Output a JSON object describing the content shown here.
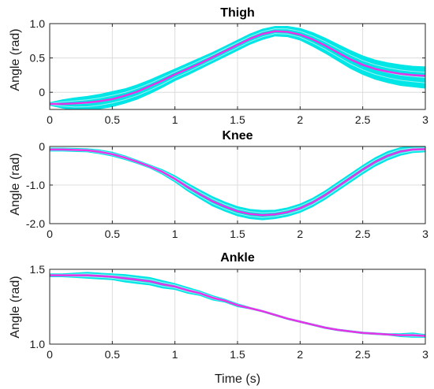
{
  "chart_data": [
    {
      "type": "area",
      "title": "Thigh",
      "ylabel": "Angle (rad)",
      "xlabel": "",
      "xlim": [
        0,
        3
      ],
      "ylim": [
        -0.25,
        1.0
      ],
      "xticks": [
        0,
        0.5,
        1,
        1.5,
        2,
        2.5,
        3
      ],
      "xtick_labels": [
        "0",
        "0.5",
        "1",
        "1.5",
        "2",
        "2.5",
        "3"
      ],
      "yticks": [
        0,
        0.5,
        1.0
      ],
      "ytick_labels": [
        "0",
        "0.5",
        "1.0"
      ],
      "grid": true,
      "x": [
        0,
        0.1,
        0.2,
        0.3,
        0.4,
        0.5,
        0.6,
        0.7,
        0.8,
        0.9,
        1.0,
        1.1,
        1.2,
        1.3,
        1.4,
        1.5,
        1.6,
        1.7,
        1.8,
        1.9,
        2.0,
        2.1,
        2.2,
        2.3,
        2.4,
        2.5,
        2.6,
        2.7,
        2.8,
        2.9,
        3.0
      ],
      "series": [
        {
          "role": "mean",
          "color": "#e633e6",
          "values": [
            -0.17,
            -0.17,
            -0.16,
            -0.15,
            -0.13,
            -0.1,
            -0.05,
            0.01,
            0.09,
            0.17,
            0.26,
            0.34,
            0.42,
            0.51,
            0.6,
            0.69,
            0.78,
            0.85,
            0.89,
            0.88,
            0.84,
            0.77,
            0.68,
            0.58,
            0.48,
            0.4,
            0.34,
            0.3,
            0.27,
            0.25,
            0.24
          ]
        },
        {
          "role": "band-upper",
          "color": "#00e5e5",
          "values": [
            -0.15,
            -0.11,
            -0.08,
            -0.06,
            -0.03,
            0.01,
            0.05,
            0.11,
            0.18,
            0.26,
            0.34,
            0.42,
            0.5,
            0.58,
            0.67,
            0.76,
            0.85,
            0.92,
            0.96,
            0.96,
            0.93,
            0.87,
            0.79,
            0.7,
            0.61,
            0.53,
            0.47,
            0.43,
            0.4,
            0.38,
            0.37
          ]
        },
        {
          "role": "band-lower",
          "color": "#00e5e5",
          "values": [
            -0.19,
            -0.23,
            -0.26,
            -0.26,
            -0.24,
            -0.21,
            -0.16,
            -0.1,
            -0.02,
            0.07,
            0.17,
            0.25,
            0.34,
            0.43,
            0.52,
            0.61,
            0.7,
            0.77,
            0.82,
            0.81,
            0.76,
            0.67,
            0.57,
            0.46,
            0.35,
            0.26,
            0.19,
            0.14,
            0.1,
            0.08,
            0.06
          ]
        }
      ]
    },
    {
      "type": "area",
      "title": "Knee",
      "ylabel": "Angle (rad)",
      "xlabel": "",
      "xlim": [
        0,
        3
      ],
      "ylim": [
        -2.0,
        0
      ],
      "xticks": [
        0,
        0.5,
        1,
        1.5,
        2,
        2.5,
        3
      ],
      "xtick_labels": [
        "0",
        "0.5",
        "1",
        "1.5",
        "2",
        "2.5",
        "3"
      ],
      "yticks": [
        -2.0,
        -1.0,
        0
      ],
      "ytick_labels": [
        "-2.0",
        "-1.0",
        "0"
      ],
      "grid": true,
      "x": [
        0,
        0.1,
        0.2,
        0.3,
        0.4,
        0.5,
        0.6,
        0.7,
        0.8,
        0.9,
        1.0,
        1.1,
        1.2,
        1.3,
        1.4,
        1.5,
        1.6,
        1.7,
        1.8,
        1.9,
        2.0,
        2.1,
        2.2,
        2.3,
        2.4,
        2.5,
        2.6,
        2.7,
        2.8,
        2.9,
        3.0
      ],
      "series": [
        {
          "role": "mean",
          "color": "#e633e6",
          "values": [
            -0.08,
            -0.08,
            -0.09,
            -0.1,
            -0.14,
            -0.2,
            -0.29,
            -0.4,
            -0.52,
            -0.66,
            -0.84,
            -1.05,
            -1.24,
            -1.42,
            -1.56,
            -1.68,
            -1.75,
            -1.78,
            -1.76,
            -1.7,
            -1.6,
            -1.45,
            -1.26,
            -1.04,
            -0.82,
            -0.6,
            -0.4,
            -0.24,
            -0.13,
            -0.08,
            -0.07
          ]
        },
        {
          "role": "band-upper",
          "color": "#00e5e5",
          "values": [
            -0.04,
            -0.04,
            -0.05,
            -0.06,
            -0.09,
            -0.15,
            -0.24,
            -0.36,
            -0.48,
            -0.6,
            -0.76,
            -0.95,
            -1.13,
            -1.3,
            -1.44,
            -1.56,
            -1.63,
            -1.66,
            -1.65,
            -1.59,
            -1.49,
            -1.34,
            -1.15,
            -0.93,
            -0.71,
            -0.49,
            -0.29,
            -0.13,
            -0.03,
            0.0,
            0.0
          ]
        },
        {
          "role": "band-lower",
          "color": "#00e5e5",
          "values": [
            -0.12,
            -0.12,
            -0.13,
            -0.14,
            -0.19,
            -0.25,
            -0.34,
            -0.44,
            -0.56,
            -0.72,
            -0.92,
            -1.15,
            -1.35,
            -1.54,
            -1.68,
            -1.8,
            -1.87,
            -1.9,
            -1.87,
            -1.81,
            -1.71,
            -1.56,
            -1.37,
            -1.15,
            -0.93,
            -0.71,
            -0.51,
            -0.35,
            -0.23,
            -0.16,
            -0.14
          ]
        }
      ]
    },
    {
      "type": "area",
      "title": "Ankle",
      "ylabel": "Angle (rad)",
      "xlabel": "Time (s)",
      "xlim": [
        0,
        3
      ],
      "ylim": [
        1.0,
        1.5
      ],
      "xticks": [
        0,
        0.5,
        1,
        1.5,
        2,
        2.5,
        3
      ],
      "xtick_labels": [
        "0",
        "0.5",
        "1",
        "1.5",
        "2",
        "2.5",
        "3"
      ],
      "yticks": [
        1.0,
        1.5
      ],
      "ytick_labels": [
        "1.0",
        "1.5"
      ],
      "grid": true,
      "x": [
        0,
        0.1,
        0.2,
        0.3,
        0.4,
        0.5,
        0.6,
        0.7,
        0.8,
        0.9,
        1.0,
        1.1,
        1.2,
        1.3,
        1.4,
        1.5,
        1.6,
        1.7,
        1.8,
        1.9,
        2.0,
        2.1,
        2.2,
        2.3,
        2.4,
        2.5,
        2.6,
        2.7,
        2.8,
        2.9,
        3.0
      ],
      "series": [
        {
          "role": "mean",
          "color": "#e633e6",
          "values": [
            1.46,
            1.46,
            1.46,
            1.46,
            1.455,
            1.45,
            1.44,
            1.43,
            1.42,
            1.4,
            1.385,
            1.36,
            1.34,
            1.31,
            1.29,
            1.26,
            1.24,
            1.22,
            1.195,
            1.17,
            1.15,
            1.13,
            1.11,
            1.095,
            1.085,
            1.075,
            1.07,
            1.065,
            1.06,
            1.06,
            1.055
          ]
        },
        {
          "role": "band-upper",
          "color": "#00e5e5",
          "values": [
            1.47,
            1.47,
            1.475,
            1.48,
            1.475,
            1.47,
            1.465,
            1.455,
            1.445,
            1.425,
            1.405,
            1.38,
            1.355,
            1.325,
            1.3,
            1.27,
            1.245,
            1.225,
            1.2,
            1.175,
            1.155,
            1.135,
            1.115,
            1.1,
            1.09,
            1.08,
            1.075,
            1.07,
            1.07,
            1.075,
            1.065
          ]
        },
        {
          "role": "band-lower",
          "color": "#00e5e5",
          "values": [
            1.45,
            1.45,
            1.445,
            1.44,
            1.435,
            1.43,
            1.415,
            1.405,
            1.395,
            1.375,
            1.365,
            1.34,
            1.325,
            1.295,
            1.28,
            1.25,
            1.235,
            1.215,
            1.19,
            1.165,
            1.145,
            1.125,
            1.105,
            1.09,
            1.08,
            1.07,
            1.065,
            1.06,
            1.05,
            1.045,
            1.045
          ]
        }
      ]
    }
  ]
}
